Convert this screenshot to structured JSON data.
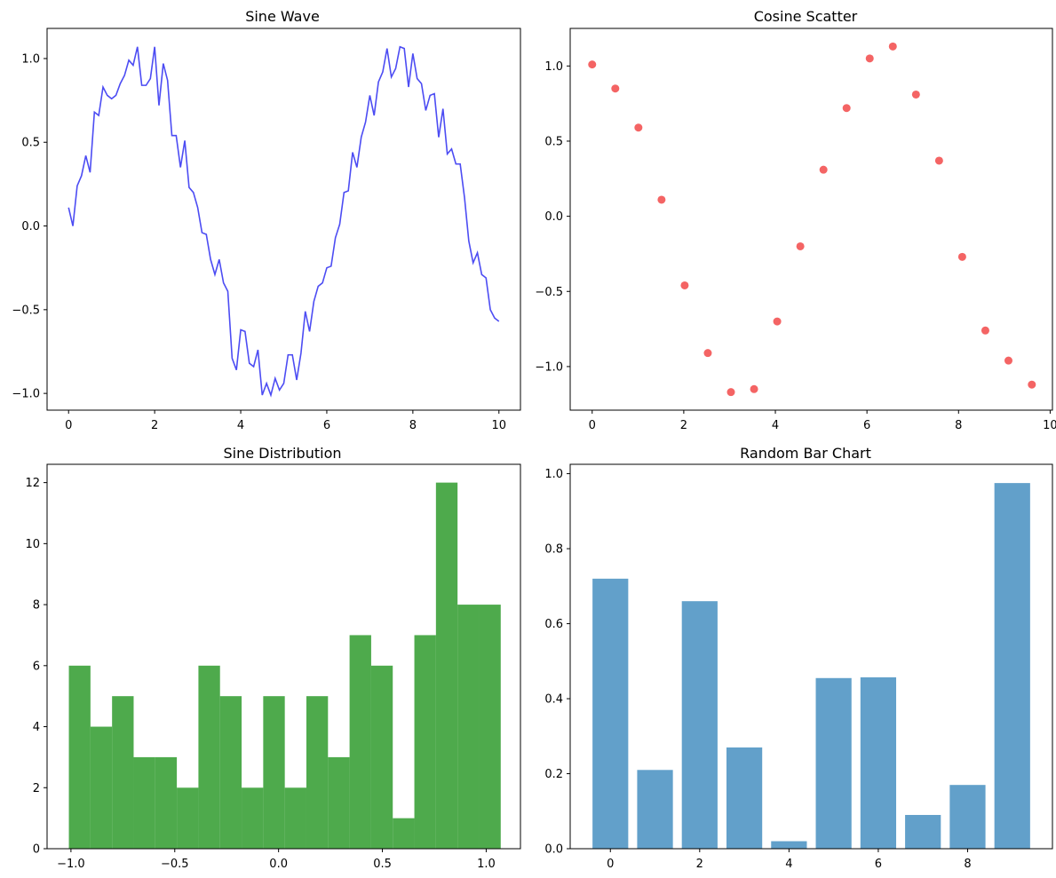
{
  "figure": {
    "background": "#ffffff"
  },
  "chart_data": [
    {
      "id": "p1",
      "type": "line",
      "title": "Sine Wave",
      "xlabel": "",
      "ylabel": "",
      "color": "#0000ee",
      "alpha": 0.7,
      "xlim": [
        -0.5,
        10.5
      ],
      "ylim": [
        -1.1,
        1.18
      ],
      "xticks": [
        0,
        2,
        4,
        6,
        8,
        10
      ],
      "xtick_labels": [
        "0",
        "2",
        "4",
        "6",
        "8",
        "10"
      ],
      "yticks": [
        -1.0,
        -0.5,
        0.0,
        0.5,
        1.0
      ],
      "ytick_labels": [
        "−1.0",
        "−0.5",
        "0.0",
        "0.5",
        "1.0"
      ],
      "points": [
        [
          0.0,
          0.11
        ],
        [
          0.1,
          0.0
        ],
        [
          0.2,
          0.24
        ],
        [
          0.3,
          0.3
        ],
        [
          0.4,
          0.42
        ],
        [
          0.5,
          0.32
        ],
        [
          0.6,
          0.68
        ],
        [
          0.7,
          0.66
        ],
        [
          0.8,
          0.83
        ],
        [
          0.9,
          0.78
        ],
        [
          1.0,
          0.76
        ],
        [
          1.1,
          0.78
        ],
        [
          1.2,
          0.85
        ],
        [
          1.3,
          0.9
        ],
        [
          1.4,
          0.99
        ],
        [
          1.5,
          0.96
        ],
        [
          1.6,
          1.07
        ],
        [
          1.7,
          0.84
        ],
        [
          1.8,
          0.84
        ],
        [
          1.9,
          0.88
        ],
        [
          2.0,
          1.07
        ],
        [
          2.1,
          0.72
        ],
        [
          2.2,
          0.97
        ],
        [
          2.3,
          0.87
        ],
        [
          2.4,
          0.54
        ],
        [
          2.5,
          0.54
        ],
        [
          2.6,
          0.35
        ],
        [
          2.7,
          0.51
        ],
        [
          2.8,
          0.23
        ],
        [
          2.9,
          0.2
        ],
        [
          3.0,
          0.11
        ],
        [
          3.1,
          -0.04
        ],
        [
          3.2,
          -0.05
        ],
        [
          3.3,
          -0.2
        ],
        [
          3.4,
          -0.29
        ],
        [
          3.5,
          -0.2
        ],
        [
          3.6,
          -0.34
        ],
        [
          3.7,
          -0.39
        ],
        [
          3.8,
          -0.79
        ],
        [
          3.9,
          -0.86
        ],
        [
          4.0,
          -0.62
        ],
        [
          4.1,
          -0.63
        ],
        [
          4.2,
          -0.82
        ],
        [
          4.3,
          -0.84
        ],
        [
          4.4,
          -0.74
        ],
        [
          4.5,
          -1.01
        ],
        [
          4.6,
          -0.94
        ],
        [
          4.7,
          -1.01
        ],
        [
          4.8,
          -0.91
        ],
        [
          4.9,
          -0.98
        ],
        [
          5.0,
          -0.94
        ],
        [
          5.1,
          -0.77
        ],
        [
          5.2,
          -0.77
        ],
        [
          5.3,
          -0.92
        ],
        [
          5.4,
          -0.76
        ],
        [
          5.5,
          -0.51
        ],
        [
          5.6,
          -0.63
        ],
        [
          5.7,
          -0.45
        ],
        [
          5.8,
          -0.36
        ],
        [
          5.9,
          -0.34
        ],
        [
          6.0,
          -0.25
        ],
        [
          6.1,
          -0.24
        ],
        [
          6.2,
          -0.07
        ],
        [
          6.3,
          0.01
        ],
        [
          6.4,
          0.2
        ],
        [
          6.5,
          0.21
        ],
        [
          6.6,
          0.44
        ],
        [
          6.7,
          0.35
        ],
        [
          6.8,
          0.53
        ],
        [
          6.9,
          0.62
        ],
        [
          7.0,
          0.78
        ],
        [
          7.1,
          0.66
        ],
        [
          7.2,
          0.86
        ],
        [
          7.3,
          0.92
        ],
        [
          7.4,
          1.06
        ],
        [
          7.5,
          0.89
        ],
        [
          7.6,
          0.94
        ],
        [
          7.7,
          1.07
        ],
        [
          7.8,
          1.06
        ],
        [
          7.9,
          0.83
        ],
        [
          8.0,
          1.03
        ],
        [
          8.1,
          0.88
        ],
        [
          8.2,
          0.85
        ],
        [
          8.3,
          0.69
        ],
        [
          8.4,
          0.78
        ],
        [
          8.5,
          0.79
        ],
        [
          8.6,
          0.53
        ],
        [
          8.7,
          0.7
        ],
        [
          8.8,
          0.43
        ],
        [
          8.9,
          0.46
        ],
        [
          9.0,
          0.37
        ],
        [
          9.1,
          0.37
        ],
        [
          9.2,
          0.17
        ],
        [
          9.3,
          -0.09
        ],
        [
          9.4,
          -0.22
        ],
        [
          9.5,
          -0.16
        ],
        [
          9.6,
          -0.29
        ],
        [
          9.7,
          -0.31
        ],
        [
          9.8,
          -0.5
        ],
        [
          9.9,
          -0.55
        ],
        [
          10.0,
          -0.57
        ]
      ]
    },
    {
      "id": "p2",
      "type": "scatter",
      "title": "Cosine Scatter",
      "xlabel": "",
      "ylabel": "",
      "color": "#ee1111",
      "alpha": 0.65,
      "xlim": [
        -0.48,
        10.05
      ],
      "ylim": [
        -1.29,
        1.25
      ],
      "xticks": [
        0,
        2,
        4,
        6,
        8,
        10
      ],
      "xtick_labels": [
        "0",
        "2",
        "4",
        "6",
        "8",
        "10"
      ],
      "yticks": [
        -1.0,
        -0.5,
        0.0,
        0.5,
        1.0
      ],
      "ytick_labels": [
        "−1.0",
        "−0.5",
        "0.0",
        "0.5",
        "1.0"
      ],
      "points": [
        [
          0.0,
          1.01
        ],
        [
          0.505,
          0.85
        ],
        [
          1.01,
          0.59
        ],
        [
          1.515,
          0.11
        ],
        [
          2.02,
          -0.46
        ],
        [
          2.525,
          -0.91
        ],
        [
          3.03,
          -1.17
        ],
        [
          3.535,
          -1.15
        ],
        [
          4.04,
          -0.7
        ],
        [
          4.545,
          -0.2
        ],
        [
          5.05,
          0.31
        ],
        [
          5.555,
          0.72
        ],
        [
          6.06,
          1.05
        ],
        [
          6.565,
          1.13
        ],
        [
          7.07,
          0.81
        ],
        [
          7.575,
          0.37
        ],
        [
          8.08,
          -0.27
        ],
        [
          8.585,
          -0.76
        ],
        [
          9.09,
          -0.96
        ],
        [
          9.6,
          -1.12
        ]
      ]
    },
    {
      "id": "p3",
      "type": "bar",
      "title": "Sine Distribution",
      "xlabel": "",
      "ylabel": "",
      "color": "#22951f",
      "alpha": 0.8,
      "xlim": [
        -1.115,
        1.165
      ],
      "ylim": [
        0,
        12.6
      ],
      "xticks": [
        -1.0,
        -0.5,
        0.0,
        0.5,
        1.0
      ],
      "xtick_labels": [
        "−1.0",
        "−0.5",
        "0.0",
        "0.5",
        "1.0"
      ],
      "yticks": [
        0,
        2,
        4,
        6,
        8,
        10,
        12
      ],
      "ytick_labels": [
        "0",
        "2",
        "4",
        "6",
        "8",
        "10",
        "12"
      ],
      "bin_start": -1.01,
      "bin_width": 0.104,
      "counts": [
        6,
        4,
        5,
        3,
        3,
        2,
        6,
        5,
        2,
        5,
        2,
        5,
        3,
        7,
        6,
        1,
        7,
        12,
        8,
        8
      ]
    },
    {
      "id": "p4",
      "type": "bar",
      "title": "Random Bar Chart",
      "xlabel": "",
      "ylabel": "",
      "color": "#1f77b4",
      "alpha": 0.7,
      "xlim": [
        -0.9,
        9.9
      ],
      "ylim": [
        0,
        1.025
      ],
      "bar_width": 0.8,
      "xticks": [
        0,
        2,
        4,
        6,
        8
      ],
      "xtick_labels": [
        "0",
        "2",
        "4",
        "6",
        "8"
      ],
      "yticks": [
        0.0,
        0.2,
        0.4,
        0.6,
        0.8,
        1.0
      ],
      "ytick_labels": [
        "0.0",
        "0.2",
        "0.4",
        "0.6",
        "0.8",
        "1.0"
      ],
      "categories": [
        0,
        1,
        2,
        3,
        4,
        5,
        6,
        7,
        8,
        9
      ],
      "values": [
        0.72,
        0.21,
        0.66,
        0.27,
        0.02,
        0.455,
        0.457,
        0.09,
        0.17,
        0.975
      ]
    }
  ]
}
